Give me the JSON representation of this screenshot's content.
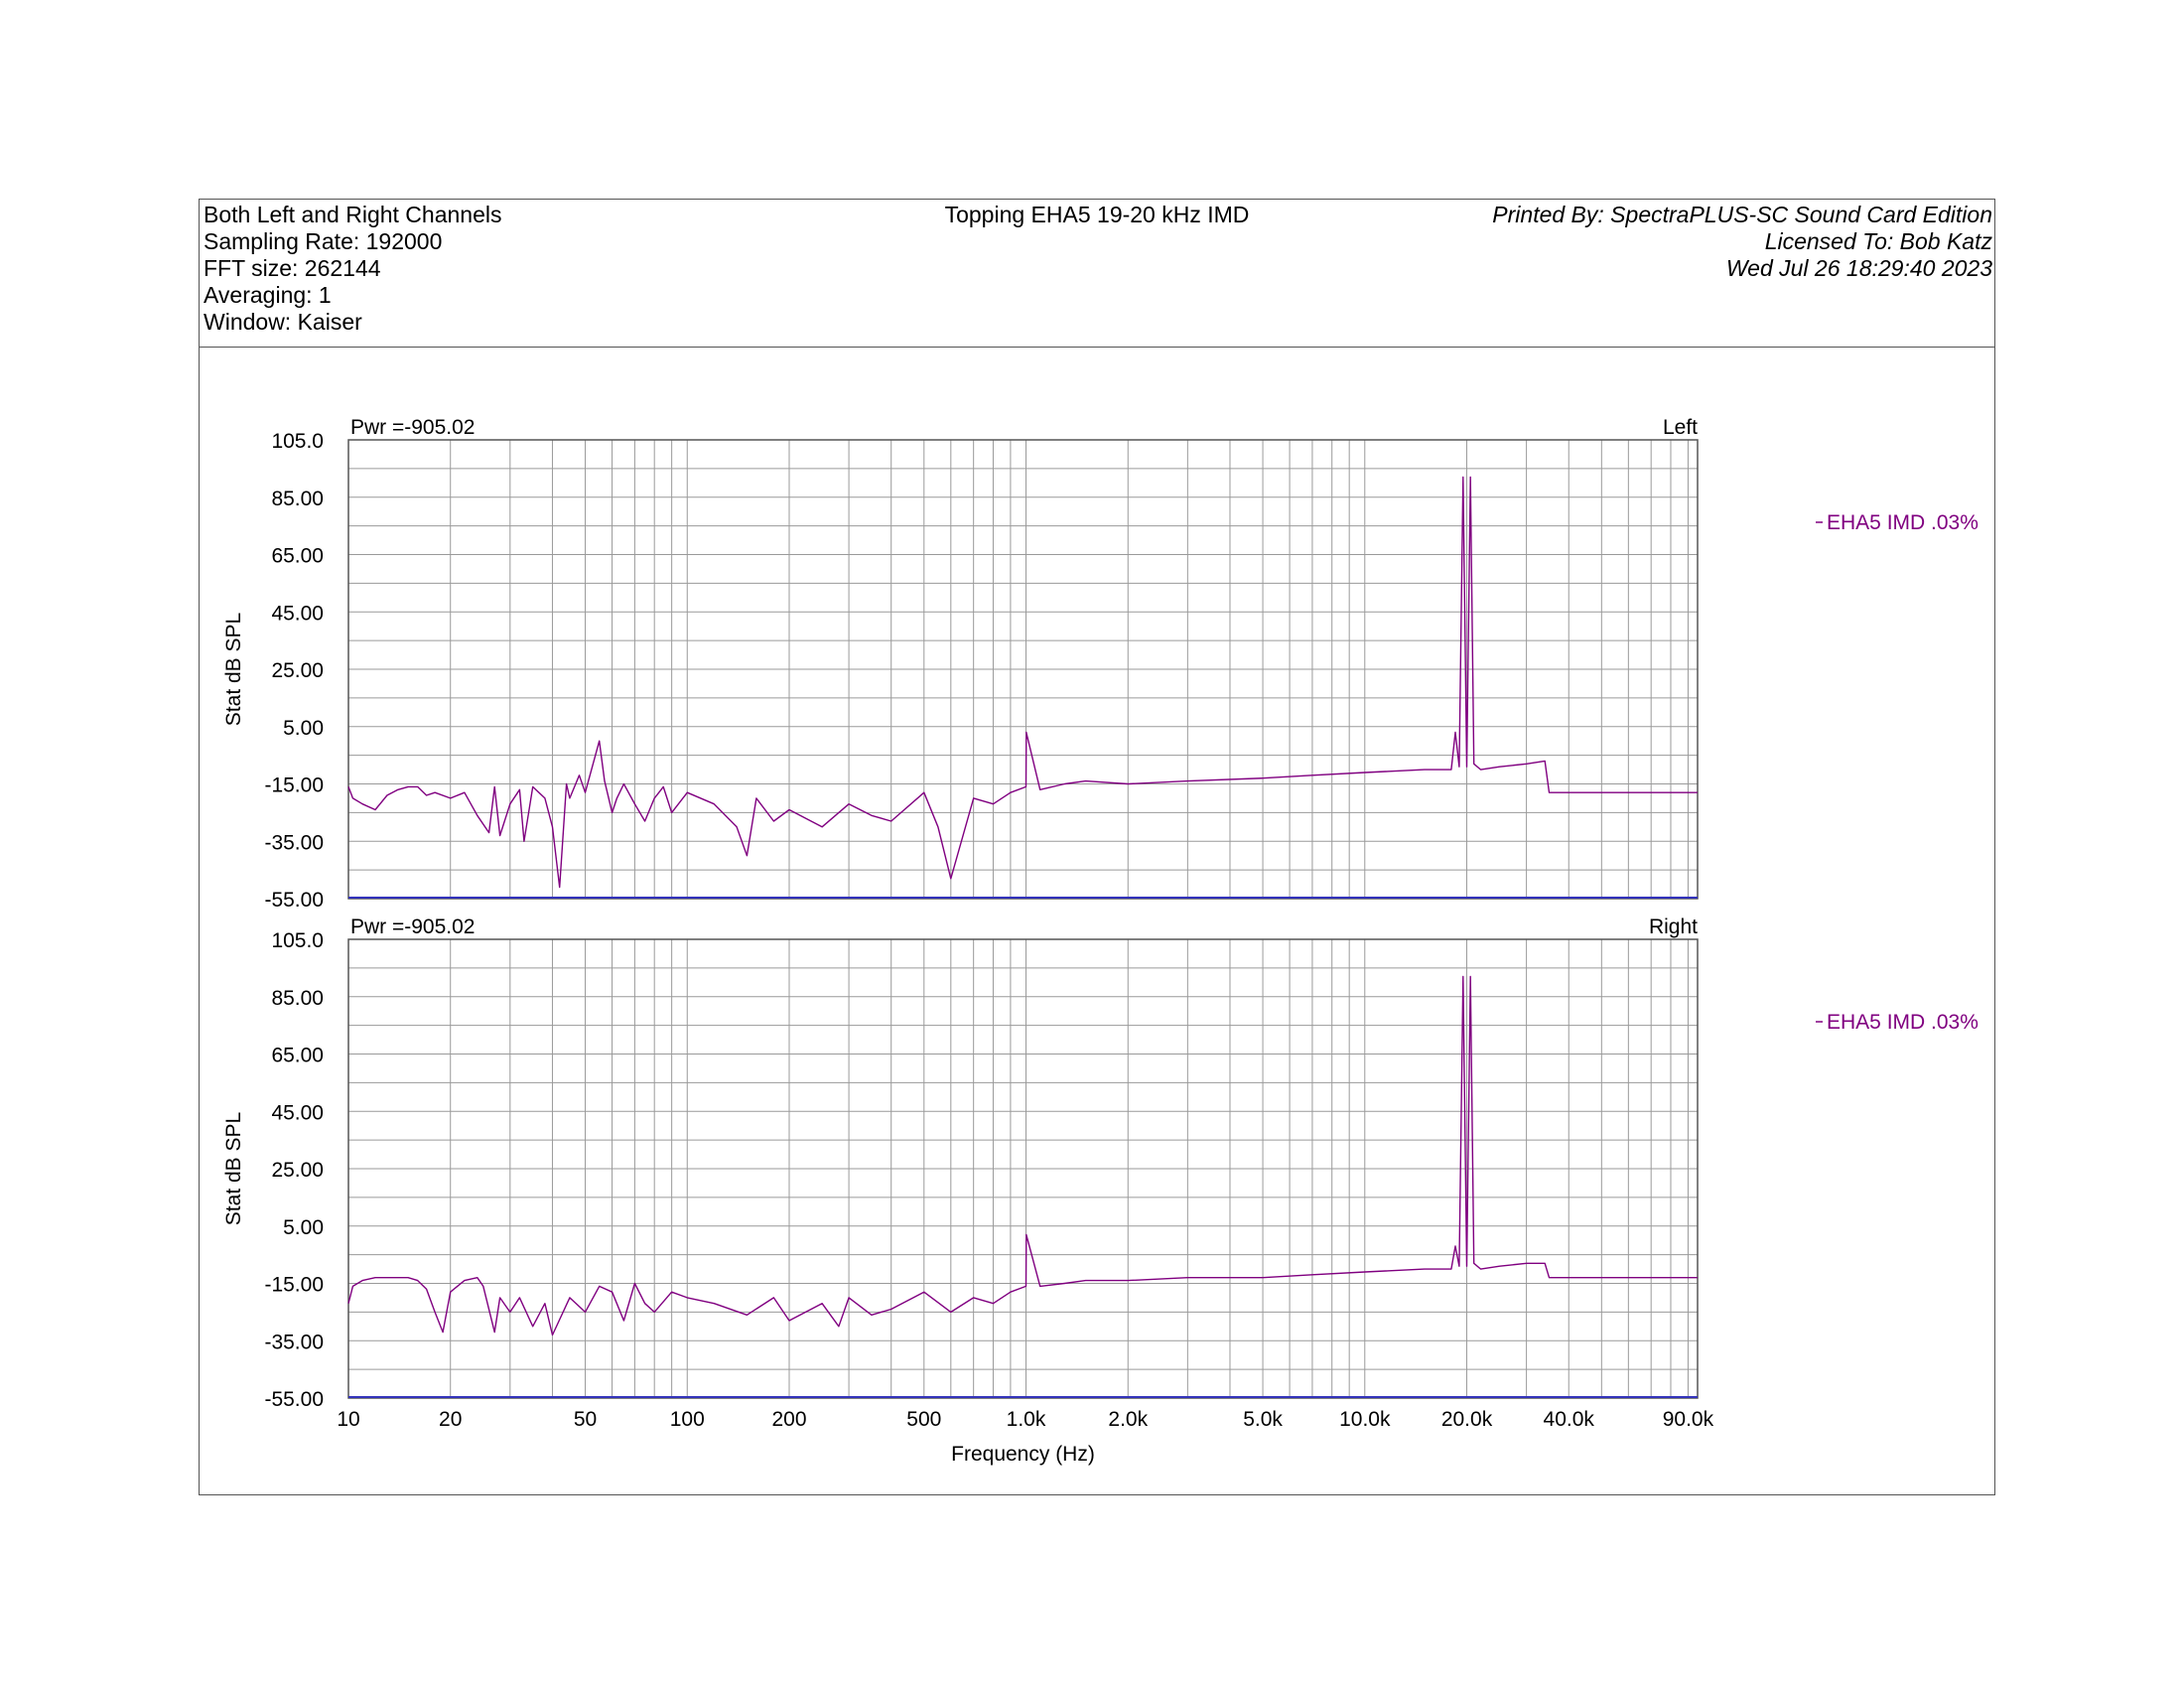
{
  "header": {
    "left_lines": [
      "Both Left and Right Channels",
      "Sampling Rate: 192000",
      "FFT size: 262144",
      "Averaging: 1",
      "Window: Kaiser"
    ],
    "title": "Topping EHA5 19-20 kHz IMD",
    "right_lines": [
      "Printed By: SpectraPLUS-SC Sound Card Edition",
      "Licensed To: Bob Katz",
      "Wed Jul 26 18:29:40 2023"
    ]
  },
  "colors": {
    "trace": "#800080",
    "grid": "#9a9a9a",
    "baseline": "#3333bb",
    "frame": "#555555"
  },
  "chart_data": [
    {
      "type": "line",
      "channel_label": "Left",
      "power_label": "Pwr =-905.02",
      "ylabel": "Stat dB SPL",
      "xlabel": "Frequency (Hz)",
      "x_scale": "log",
      "xlim": [
        10,
        96000
      ],
      "ylim": [
        -55,
        105
      ],
      "yticks": [
        "105.0",
        "85.00",
        "65.00",
        "45.00",
        "25.00",
        "5.00",
        "-15.00",
        "-35.00",
        "-55.00"
      ],
      "xticks": [
        {
          "value": 10,
          "label": "10"
        },
        {
          "value": 20,
          "label": "20"
        },
        {
          "value": 50,
          "label": "50"
        },
        {
          "value": 100,
          "label": "100"
        },
        {
          "value": 200,
          "label": "200"
        },
        {
          "value": 500,
          "label": "500"
        },
        {
          "value": 1000,
          "label": "1.0k"
        },
        {
          "value": 2000,
          "label": "2.0k"
        },
        {
          "value": 5000,
          "label": "5.0k"
        },
        {
          "value": 10000,
          "label": "10.0k"
        },
        {
          "value": 20000,
          "label": "20.0k"
        },
        {
          "value": 40000,
          "label": "40.0k"
        },
        {
          "value": 90000,
          "label": "90.0k"
        }
      ],
      "grid": true,
      "legend": "right",
      "series": [
        {
          "name": "EHA5 IMD .03%",
          "x": [
            10,
            10.3,
            11,
            12,
            13,
            14,
            15,
            16,
            17,
            18,
            20,
            22,
            24,
            26,
            27,
            28,
            30,
            32,
            33,
            35,
            38,
            40,
            42,
            44,
            45,
            48,
            50,
            55,
            57,
            60,
            62,
            65,
            70,
            75,
            80,
            85,
            90,
            100,
            120,
            140,
            150,
            160,
            180,
            200,
            250,
            300,
            350,
            400,
            500,
            550,
            600,
            700,
            800,
            900,
            1000,
            1002,
            1100,
            1300,
            1500,
            2000,
            3000,
            5000,
            7000,
            10000,
            15000,
            18000,
            18500,
            19000,
            19500,
            20000,
            20500,
            21000,
            22000,
            25000,
            30000,
            34000,
            35000,
            96000
          ],
          "y": [
            -16,
            -20,
            -22,
            -24,
            -19,
            -17,
            -16,
            -16,
            -19,
            -18,
            -20,
            -18,
            -26,
            -32,
            -16,
            -33,
            -22,
            -17,
            -35,
            -16,
            -20,
            -30,
            -51,
            -15,
            -20,
            -12,
            -18,
            0,
            -14,
            -25,
            -20,
            -15,
            -22,
            -28,
            -20,
            -16,
            -25,
            -18,
            -22,
            -30,
            -40,
            -20,
            -28,
            -24,
            -30,
            -22,
            -26,
            -28,
            -18,
            -30,
            -48,
            -20,
            -22,
            -18,
            -16,
            3,
            -17,
            -15,
            -14,
            -15,
            -14,
            -13,
            -12,
            -11,
            -10,
            -10,
            3,
            -9,
            92,
            -9,
            92,
            -8,
            -10,
            -9,
            -8,
            -7,
            -18,
            -18
          ]
        }
      ]
    },
    {
      "type": "line",
      "channel_label": "Right",
      "power_label": "Pwr =-905.02",
      "ylabel": "Stat dB SPL",
      "xlabel": "Frequency (Hz)",
      "x_scale": "log",
      "xlim": [
        10,
        96000
      ],
      "ylim": [
        -55,
        105
      ],
      "yticks": [
        "105.0",
        "85.00",
        "65.00",
        "45.00",
        "25.00",
        "5.00",
        "-15.00",
        "-35.00",
        "-55.00"
      ],
      "xticks": [
        {
          "value": 10,
          "label": "10"
        },
        {
          "value": 20,
          "label": "20"
        },
        {
          "value": 50,
          "label": "50"
        },
        {
          "value": 100,
          "label": "100"
        },
        {
          "value": 200,
          "label": "200"
        },
        {
          "value": 500,
          "label": "500"
        },
        {
          "value": 1000,
          "label": "1.0k"
        },
        {
          "value": 2000,
          "label": "2.0k"
        },
        {
          "value": 5000,
          "label": "5.0k"
        },
        {
          "value": 10000,
          "label": "10.0k"
        },
        {
          "value": 20000,
          "label": "20.0k"
        },
        {
          "value": 40000,
          "label": "40.0k"
        },
        {
          "value": 90000,
          "label": "90.0k"
        }
      ],
      "grid": true,
      "legend": "right",
      "series": [
        {
          "name": "EHA5 IMD .03%",
          "x": [
            10,
            10.3,
            11,
            12,
            13,
            14,
            15,
            16,
            17,
            18,
            19,
            20,
            22,
            24,
            25,
            27,
            28,
            30,
            32,
            35,
            38,
            40,
            45,
            50,
            55,
            60,
            65,
            70,
            75,
            80,
            90,
            100,
            120,
            150,
            180,
            200,
            250,
            280,
            300,
            350,
            400,
            500,
            600,
            700,
            800,
            900,
            1000,
            1002,
            1100,
            1300,
            1500,
            2000,
            3000,
            5000,
            7000,
            10000,
            15000,
            18000,
            18500,
            19000,
            19500,
            20000,
            20500,
            21000,
            22000,
            25000,
            30000,
            34000,
            35000,
            96000
          ],
          "y": [
            -22,
            -16,
            -14,
            -13,
            -13,
            -13,
            -13,
            -14,
            -17,
            -25,
            -32,
            -18,
            -14,
            -13,
            -16,
            -32,
            -20,
            -25,
            -20,
            -30,
            -22,
            -33,
            -20,
            -25,
            -16,
            -18,
            -28,
            -15,
            -22,
            -25,
            -18,
            -20,
            -22,
            -26,
            -20,
            -28,
            -22,
            -30,
            -20,
            -26,
            -24,
            -18,
            -25,
            -20,
            -22,
            -18,
            -16,
            2,
            -16,
            -15,
            -14,
            -14,
            -13,
            -13,
            -12,
            -11,
            -10,
            -10,
            -2,
            -9,
            92,
            -9,
            92,
            -8,
            -10,
            -9,
            -8,
            -8,
            -13,
            -13
          ]
        }
      ]
    }
  ]
}
